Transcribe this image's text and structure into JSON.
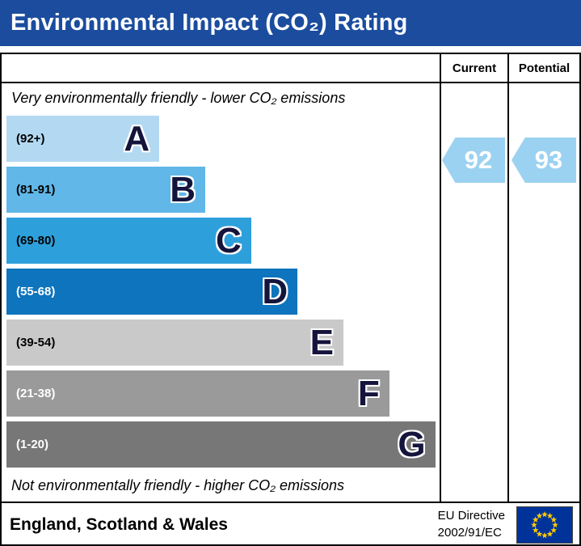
{
  "title": "Environmental Impact (CO₂) Rating",
  "columns": {
    "current": "Current",
    "potential": "Potential"
  },
  "top_note": "Very environmentally friendly - lower CO₂ emissions",
  "bottom_note": "Not environmentally friendly - higher CO₂ emissions",
  "chart_data": {
    "type": "bar",
    "title": "Environmental Impact (CO₂) Rating",
    "bands": [
      {
        "letter": "A",
        "range": "(92+)",
        "color": "#b3d9f2",
        "range_text_color": "#000000",
        "width_pct": 35.3
      },
      {
        "letter": "B",
        "range": "(81-91)",
        "color": "#60b7e8",
        "range_text_color": "#000000",
        "width_pct": 45.9
      },
      {
        "letter": "C",
        "range": "(69-80)",
        "color": "#2da0dc",
        "range_text_color": "#000000",
        "width_pct": 56.5
      },
      {
        "letter": "D",
        "range": "(55-68)",
        "color": "#0d74bd",
        "range_text_color": "#ffffff",
        "width_pct": 67.2
      },
      {
        "letter": "E",
        "range": "(39-54)",
        "color": "#c9c9c9",
        "range_text_color": "#000000",
        "width_pct": 77.8
      },
      {
        "letter": "F",
        "range": "(21-38)",
        "color": "#9a9a9a",
        "range_text_color": "#ffffff",
        "width_pct": 88.4
      },
      {
        "letter": "G",
        "range": "(1-20)",
        "color": "#777777",
        "range_text_color": "#ffffff",
        "width_pct": 99.0
      }
    ],
    "current": 92,
    "potential": 93,
    "current_band": "A",
    "potential_band": "A",
    "arrow_color": "#9cd2f1",
    "legend_position": "none",
    "grid": false
  },
  "colors": {
    "title_bar": "#1b4c9e",
    "arrow": "#9cd2f1"
  },
  "footer": {
    "region": "England, Scotland & Wales",
    "directive_line1": "EU Directive",
    "directive_line2": "2002/91/EC",
    "flag": "eu-flag"
  }
}
